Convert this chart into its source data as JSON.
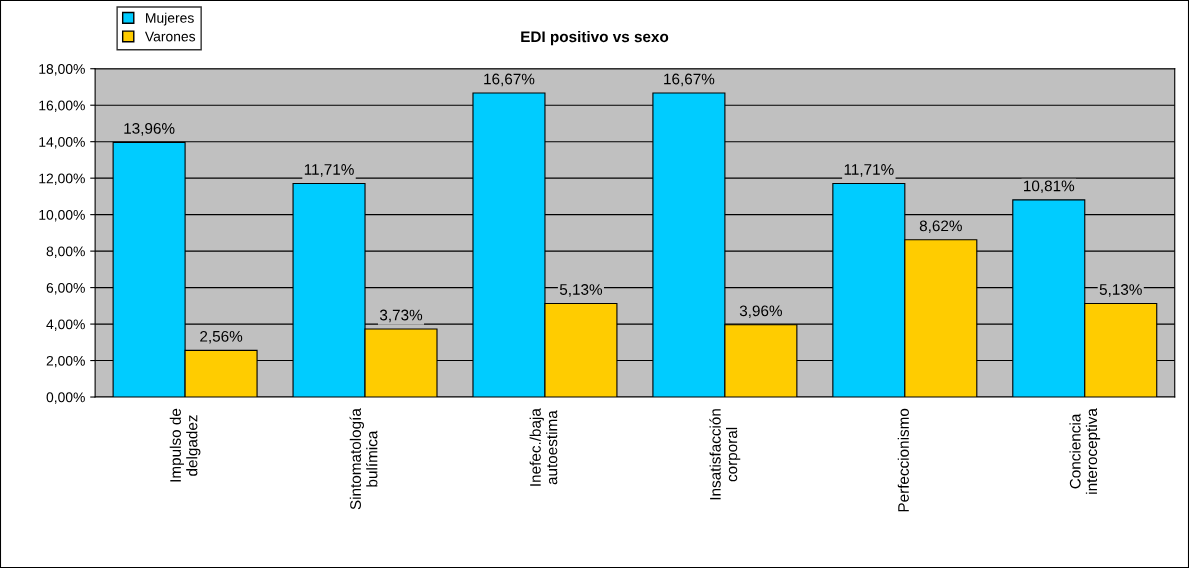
{
  "chart_data": {
    "type": "bar",
    "title": "EDI positivo vs sexo",
    "categories": [
      "Impulso de\ndelgadez",
      "Sintomatología\nbulímica",
      "Inefec./baja\nautoestima",
      "Insatisfacción\ncorporal",
      "Perfeccionismo",
      "Conciencia\ninteroceptiva"
    ],
    "series": [
      {
        "name": "Mujeres",
        "color": "#00ccff",
        "values": [
          13.96,
          11.71,
          16.67,
          16.67,
          11.71,
          10.81
        ],
        "value_labels": [
          "13,96%",
          "11,71%",
          "16,67%",
          "16,67%",
          "11,71%",
          "10,81%"
        ]
      },
      {
        "name": "Varones",
        "color": "#ffcc00",
        "values": [
          2.56,
          3.73,
          5.13,
          3.96,
          8.62,
          5.13
        ],
        "value_labels": [
          "2,56%",
          "3,73%",
          "5,13%",
          "3,96%",
          "8,62%",
          "5,13%"
        ]
      }
    ],
    "ylim": [
      0,
      18
    ],
    "yticks": [
      {
        "value": 0,
        "label": "0,00%"
      },
      {
        "value": 2,
        "label": "2,00%"
      },
      {
        "value": 4,
        "label": "4,00%"
      },
      {
        "value": 6,
        "label": "6,00%"
      },
      {
        "value": 8,
        "label": "8,00%"
      },
      {
        "value": 10,
        "label": "10,00%"
      },
      {
        "value": 12,
        "label": "12,00%"
      },
      {
        "value": 14,
        "label": "14,00%"
      },
      {
        "value": 16,
        "label": "16,00%"
      },
      {
        "value": 18,
        "label": "18,00%"
      }
    ],
    "grid": "y",
    "legend": "top left"
  }
}
